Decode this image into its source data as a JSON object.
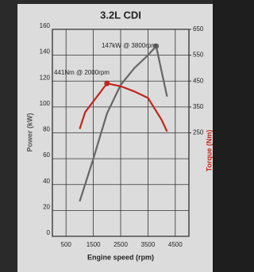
{
  "chart_data": {
    "type": "line",
    "title": "3.2L CDI",
    "xlabel": "Engine speed (rpm)",
    "ylabel": "Power (kW)",
    "y2label": "Torque (Nm)",
    "xlim": [
      0,
      5000
    ],
    "xticks": [
      500,
      1500,
      2500,
      3500,
      4500
    ],
    "ylim": [
      0,
      160
    ],
    "yticks": [
      0,
      20,
      40,
      60,
      80,
      100,
      120,
      140,
      160
    ],
    "y2lim": [
      -150,
      650
    ],
    "y2ticks": [
      250,
      350,
      450,
      550,
      650
    ],
    "grid": true,
    "series": [
      {
        "color": "#666666",
        "x": [
          1000,
          1500,
          2000,
          2500,
          3000,
          3500,
          3800,
          4200
        ],
        "values": [
          27,
          60,
          95,
          117,
          130,
          140,
          147,
          108
        ]
      },
      {
        "color": "#c0281c",
        "axis": "y2",
        "x": [
          1000,
          1200,
          2000,
          2500,
          3000,
          3500,
          4000,
          4200
        ],
        "values": [
          265,
          330,
          441,
          430,
          410,
          385,
          300,
          255
        ]
      }
    ],
    "annotations": [
      "147kW @ 3800rpm",
      "441Nm @ 2000rpm"
    ]
  }
}
